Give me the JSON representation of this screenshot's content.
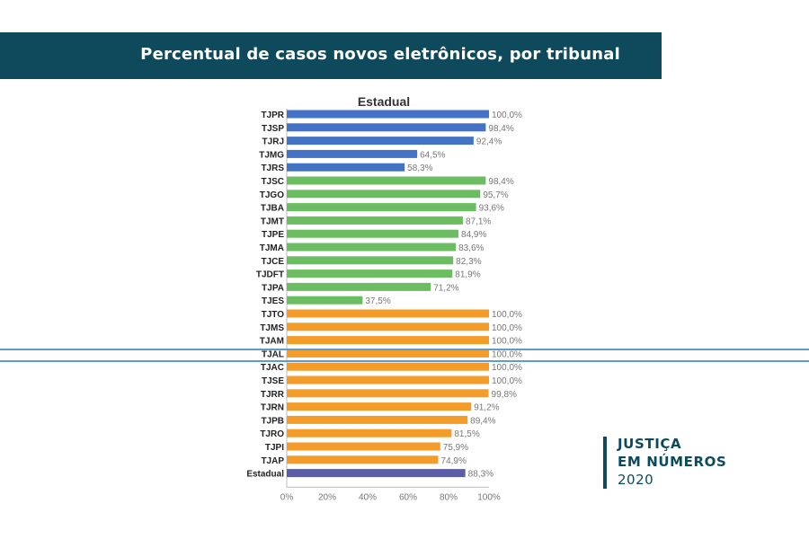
{
  "header": {
    "title": "Percentual de casos novos eletrônicos, por tribunal"
  },
  "logo": {
    "line1": "JUSTIÇA",
    "line2": "EM NÚMEROS",
    "line3": "2020"
  },
  "colors": {
    "blue": "#4472c4",
    "green": "#6cbd62",
    "orange": "#f39c2a",
    "purple": "#5b5ea6",
    "banner": "#0e4a5c",
    "highlight_line": "#5f9bd1"
  },
  "chart_data": {
    "type": "bar",
    "orientation": "horizontal",
    "title": "Estadual",
    "xlim": [
      0,
      100
    ],
    "xticks": [
      "0%",
      "20%",
      "40%",
      "60%",
      "80%",
      "100%"
    ],
    "highlighted_category": "TJAL",
    "categories": [
      "TJPR",
      "TJSP",
      "TJRJ",
      "TJMG",
      "TJRS",
      "TJSC",
      "TJGO",
      "TJBA",
      "TJMT",
      "TJPE",
      "TJMA",
      "TJCE",
      "TJDFT",
      "TJPA",
      "TJES",
      "TJTO",
      "TJMS",
      "TJAM",
      "TJAL",
      "TJAC",
      "TJSE",
      "TJRR",
      "TJRN",
      "TJPB",
      "TJRO",
      "TJPI",
      "TJAP",
      "Estadual"
    ],
    "values": [
      100.0,
      98.4,
      92.4,
      64.5,
      58.3,
      98.4,
      95.7,
      93.6,
      87.1,
      84.9,
      83.6,
      82.3,
      81.9,
      71.2,
      37.5,
      100.0,
      100.0,
      100.0,
      100.0,
      100.0,
      100.0,
      99.8,
      91.2,
      89.4,
      81.5,
      75.9,
      74.9,
      88.3
    ],
    "labels": [
      "100,0%",
      "98,4%",
      "92,4%",
      "64,5%",
      "58,3%",
      "98,4%",
      "95,7%",
      "93,6%",
      "87,1%",
      "84,9%",
      "83,6%",
      "82,3%",
      "81,9%",
      "71,2%",
      "37,5%",
      "100,0%",
      "100,0%",
      "100,0%",
      "100,0%",
      "100,0%",
      "100,0%",
      "99,8%",
      "91,2%",
      "89,4%",
      "81,5%",
      "75,9%",
      "74,9%",
      "88,3%"
    ],
    "groups": [
      "blue",
      "blue",
      "blue",
      "blue",
      "blue",
      "green",
      "green",
      "green",
      "green",
      "green",
      "green",
      "green",
      "green",
      "green",
      "green",
      "orange",
      "orange",
      "orange",
      "orange",
      "orange",
      "orange",
      "orange",
      "orange",
      "orange",
      "orange",
      "orange",
      "orange",
      "purple"
    ]
  }
}
